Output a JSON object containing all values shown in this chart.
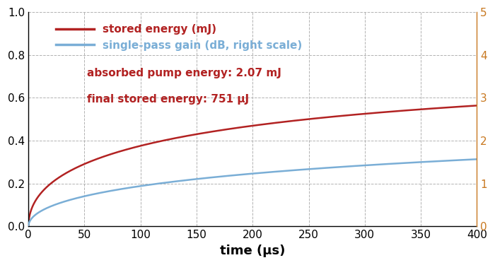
{
  "xlabel": "time (μs)",
  "xlim": [
    0,
    400
  ],
  "ylim_left": [
    0,
    1
  ],
  "ylim_right": [
    0,
    5
  ],
  "yticks_left": [
    0,
    0.2,
    0.4,
    0.6,
    0.8,
    1.0
  ],
  "yticks_right": [
    0,
    1,
    2,
    3,
    4,
    5
  ],
  "xticks": [
    0,
    50,
    100,
    150,
    200,
    250,
    300,
    350,
    400
  ],
  "red_label": "stored energy (mJ)",
  "blue_label": "single-pass gain (dB, right scale)",
  "annotation_line1": "absorbed pump energy: 2.07 mJ",
  "annotation_line2": "final stored energy: 751 μJ",
  "red_color": "#b22222",
  "blue_color": "#7aaed6",
  "right_tick_color": "#c87820",
  "annotation_color": "#b22222",
  "grid_color": "#aaaaaa",
  "background_color": "#ffffff",
  "red_sqrt_scale": 0.751,
  "red_sqrt_tau": 60,
  "blue_sqrt_scale": 2.8,
  "blue_sqrt_tau": 120,
  "line_width": 1.8
}
